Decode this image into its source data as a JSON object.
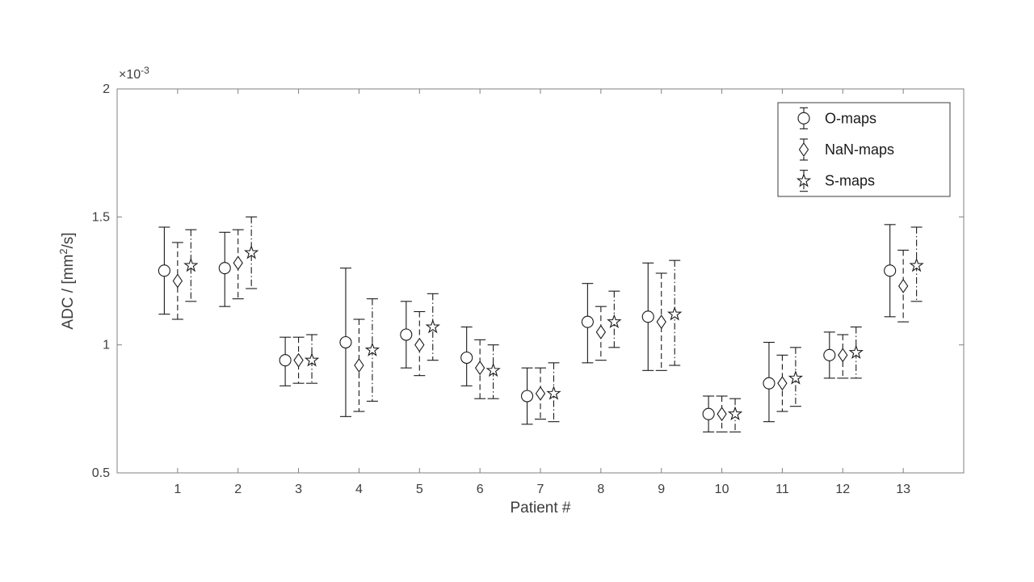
{
  "figure": {
    "background": "#ffffff",
    "axis_color": "#808080",
    "text_color": "#3d3d3d",
    "data_color": "#1a1a1a"
  },
  "chart_data": {
    "type": "errorbar",
    "title": "",
    "xlabel": "Patient #",
    "ylabel": {
      "pre": "ADC / [mm",
      "sup": "2",
      "post": "/s]"
    },
    "y_scale_label": {
      "base": "×10",
      "exponent": "-3"
    },
    "xlim": [
      0,
      14
    ],
    "ylim": [
      0.5,
      2
    ],
    "y_values_unit": "×10^-3 mm^2/s",
    "x_ticks": [
      1,
      2,
      3,
      4,
      5,
      6,
      7,
      8,
      9,
      10,
      11,
      12,
      13
    ],
    "y_ticks": [
      {
        "value": 0.5,
        "label": "0.5"
      },
      {
        "value": 1,
        "label": "1"
      },
      {
        "value": 1.5,
        "label": "1.5"
      },
      {
        "value": 2,
        "label": "2"
      }
    ],
    "categories": [
      1,
      2,
      3,
      4,
      5,
      6,
      7,
      8,
      9,
      10,
      11,
      12,
      13
    ],
    "grid": false,
    "legend": {
      "position": "northeast",
      "entries": [
        "O-maps",
        "NaN-maps",
        "S-maps"
      ]
    },
    "series": [
      {
        "name": "O-maps",
        "marker": "circle",
        "linestyle": "solid",
        "offset": -0.22,
        "values": [
          1.29,
          1.3,
          0.94,
          1.01,
          1.04,
          0.95,
          0.8,
          1.09,
          1.11,
          0.73,
          0.85,
          0.96,
          1.29
        ],
        "err_low": [
          1.12,
          1.15,
          0.84,
          0.72,
          0.91,
          0.84,
          0.69,
          0.93,
          0.9,
          0.66,
          0.7,
          0.87,
          1.11
        ],
        "err_high": [
          1.46,
          1.44,
          1.03,
          1.3,
          1.17,
          1.07,
          0.91,
          1.24,
          1.32,
          0.8,
          1.01,
          1.05,
          1.47
        ]
      },
      {
        "name": "NaN-maps",
        "marker": "diamond",
        "linestyle": "dashed",
        "offset": 0,
        "values": [
          1.25,
          1.32,
          0.94,
          0.92,
          1.0,
          0.91,
          0.81,
          1.05,
          1.09,
          0.73,
          0.85,
          0.96,
          1.23
        ],
        "err_low": [
          1.1,
          1.18,
          0.85,
          0.74,
          0.88,
          0.79,
          0.71,
          0.94,
          0.9,
          0.66,
          0.74,
          0.87,
          1.09
        ],
        "err_high": [
          1.4,
          1.45,
          1.03,
          1.1,
          1.13,
          1.02,
          0.91,
          1.15,
          1.28,
          0.8,
          0.96,
          1.04,
          1.37
        ]
      },
      {
        "name": "S-maps",
        "marker": "star",
        "linestyle": "dashdot",
        "offset": 0.22,
        "values": [
          1.31,
          1.36,
          0.94,
          0.98,
          1.07,
          0.9,
          0.81,
          1.09,
          1.12,
          0.73,
          0.87,
          0.97,
          1.31
        ],
        "err_low": [
          1.17,
          1.22,
          0.85,
          0.78,
          0.94,
          0.79,
          0.7,
          0.99,
          0.92,
          0.66,
          0.76,
          0.87,
          1.17
        ],
        "err_high": [
          1.45,
          1.5,
          1.04,
          1.18,
          1.2,
          1.0,
          0.93,
          1.21,
          1.33,
          0.79,
          0.99,
          1.07,
          1.46
        ]
      }
    ]
  }
}
